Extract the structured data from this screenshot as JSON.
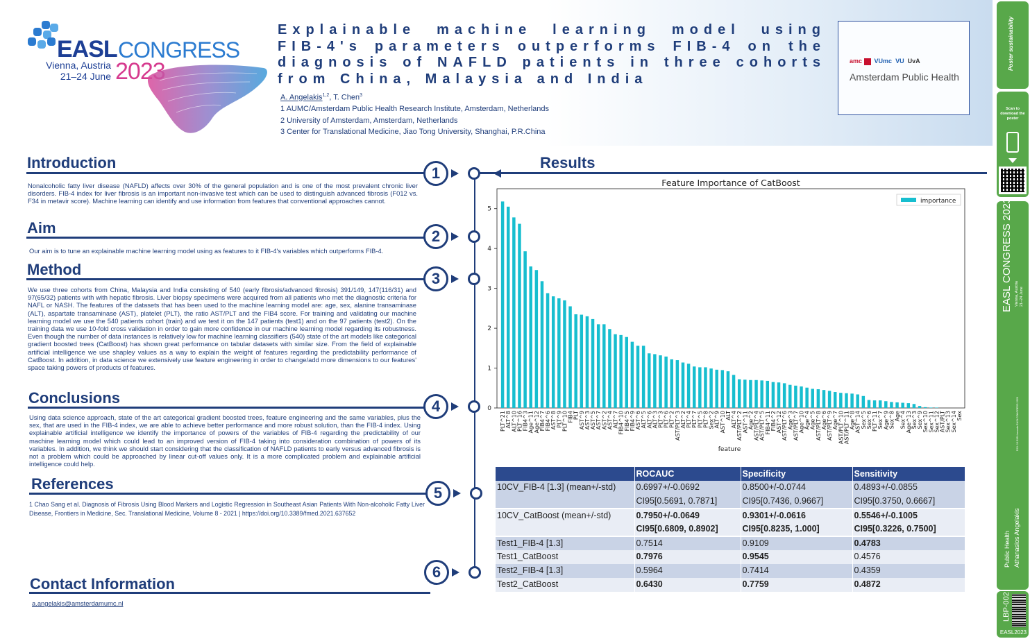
{
  "logo": {
    "easl": "EASL",
    "congress": "CONGRESS",
    "city": "Vienna, Austria",
    "dates": "21–24 June",
    "year": "2023"
  },
  "title": "Explainable machine learning model using FIB-4's parameters outperforms FIB-4 on the diagnosis of NAFLD patients in three cohorts from China, Malaysia and India",
  "authors": {
    "a1": "A. Angelakis",
    "a1_sup": "1,2",
    "a2": ", T. Chen",
    "a2_sup": "3"
  },
  "affiliations": [
    "1 AUMC/Amsterdam Public Health Research Institute, Amsterdam, Netherlands",
    "2 University of Amsterdam, Amsterdam, Netherlands",
    "3 Center for Translational Medicine, Jiao Tong University, Shanghai, P.R.China"
  ],
  "partner": {
    "logos": [
      "amc",
      "VUmc",
      "VU",
      "UvA"
    ],
    "name": "Amsterdam Public Health"
  },
  "sections": {
    "introduction": {
      "title": "Introduction",
      "num": "1",
      "text": "Nonalcoholic fatty liver disease (NAFLD) affects over 30% of the general population and is one of the most prevalent chronic liver disorders. FIB-4 index for liver fibrosis is an important non-invasive test which can be used to distinguish advanced fibrosis (F012 vs. F34 in metavir score). Machine learning can identify and use information from features that conventional approaches cannot."
    },
    "aim": {
      "title": "Aim",
      "num": "2",
      "text": "Our aim is to tune an explainable machine learning model using as features to it FIB-4's variables which outperforms FIB-4."
    },
    "method": {
      "title": "Method",
      "num": "3",
      "text": "We use three cohorts from China, Malaysia and India consisting of 540 (early fibrosis/advanced fibrosis) 391/149, 147(116/31) and 97(65/32) patients with with hepatic fibrosis. Liver biopsy specimens were acquired from all patients who met the diagnostic criteria for NAFL or NASH. The features of the datasets that has been used to the machine learning model are: age, sex, alanine transaminase (ALT), aspartate transaminase (AST), platelet (PLT), the ratio AST/PLT and the FIB4 score. For training and validating our machine learning model we use the 540 patients cohort (train) and we test it on the 147 patients (test1) and on the 97 patients (test2). On the training data we use 10-fold cross validation in order to gain more confidence in our machine learning model regarding its robustness. Even though the number of data instances is relatively low for machine learning classifiers (540) state of the art models like categorical gradient boosted trees (CatBoost) has shown great performance on tabular datasets with similar size. From the field of explainable artificial intelligence we use shapley values as a way to explain the weight of features regarding the predictability performance of CatBoost. In addition, in data science we extensively use feature engineering in order to change/add more dimensions to our features' space taking powers of products of features."
    },
    "conclusions": {
      "title": "Conclusions",
      "num": "4",
      "text": "Using data science approach, state of the art categorical gradient boosted trees, feature engineering and the same variables, plus the sex, that are used in the FIB-4 index, we are able to achieve better performance and more robust solution, than the FIB-4 index. Using explainable artificial intelligence we identify the importance of powers of the variables of FIB-4 regarding the predictability of our machine learning model which could lead to an improved version of FIB-4 taking into consideration combination of powers of its variables. In addition, we think we should start considering that the classification of NAFLD patients to early versus advanced fibrosis is not a problem which could be approached by linear cut-off values only. It is a more complicated problem and explainable artificial intelligence could help."
    },
    "references": {
      "title": "References",
      "num": "5",
      "text": "1 Chao Sang et al. Diagnosis of Fibrosis Using Blood Markers and Logistic Regression in Southeast Asian Patients With Non-alcoholic Fatty Liver Disease, Frontiers in Medicine, Sec. Translational Medicine, Volume 8 - 2021 | https://doi.org/10.3389/fmed.2021.637652"
    },
    "contact": {
      "title": "Contact Information",
      "num": "6",
      "email": "a.angelakis@amsterdamumc.nl"
    },
    "results": {
      "title": "Results"
    }
  },
  "chart_data": {
    "type": "bar",
    "title": "Feature Importance of CatBoost",
    "xlabel": "feature",
    "ylabel": "",
    "ylim": [
      0,
      5.5
    ],
    "yticks": [
      0,
      1,
      2,
      3,
      4,
      5
    ],
    "legend": "top-right",
    "color": "#17becf",
    "series": [
      {
        "name": "importance",
        "values": [
          5.18,
          5.05,
          4.78,
          4.62,
          3.93,
          3.55,
          3.46,
          3.18,
          2.88,
          2.8,
          2.75,
          2.7,
          2.55,
          2.35,
          2.34,
          2.3,
          2.23,
          2.1,
          2.1,
          1.98,
          1.85,
          1.83,
          1.78,
          1.66,
          1.56,
          1.56,
          1.37,
          1.35,
          1.32,
          1.29,
          1.22,
          1.2,
          1.14,
          1.11,
          1.04,
          1.02,
          1.02,
          0.99,
          0.96,
          0.95,
          0.92,
          0.83,
          0.72,
          0.71,
          0.7,
          0.7,
          0.69,
          0.68,
          0.65,
          0.64,
          0.62,
          0.58,
          0.56,
          0.54,
          0.51,
          0.48,
          0.47,
          0.45,
          0.43,
          0.4,
          0.38,
          0.37,
          0.36,
          0.34,
          0.3,
          0.2,
          0.19,
          0.19,
          0.17,
          0.15,
          0.14,
          0.13,
          0.12,
          0.1,
          0.05,
          0.02,
          0.01,
          0.01,
          0.0,
          0.0,
          0.0,
          0.0
        ]
      }
    ],
    "categories": [
      "PLT^21",
      "ALT^8",
      "ALT^10",
      "PLT^16",
      "FIB4^3",
      "Age^11",
      "Age^12",
      "FIB4^7",
      "FIB4^6",
      "AST^8",
      "PLT^9",
      "PLT^10",
      "FIB4",
      "PLT",
      "AST^9",
      "AST^3",
      "AST^5",
      "AST^7",
      "AST^2",
      "AST^4",
      "ALT^7",
      "FIB4^10",
      "FIB4^5",
      "FIB4^9",
      "AST^6",
      "ALT^5",
      "ALT^6",
      "ALT^3",
      "PLT^3",
      "PLT^6",
      "PLT^2",
      "AST/PLT^3",
      "ALT^2",
      "PLT^4",
      "PLT^7",
      "PLT^5",
      "PLT^8",
      "Sex^2",
      "ALT^9",
      "AST^10",
      "ALT",
      "ALT^4",
      "AST/PLT^2",
      "AST^11",
      "Age^2",
      "AST/PLT^4",
      "AST/PLT^5",
      "FIB4^11",
      "FIB4^2",
      "AST^12",
      "AST/PLT^6",
      "Age^3",
      "AST/PLT^7",
      "Age^10",
      "Age^4",
      "Age^5",
      "AST/PLT^8",
      "Age^6",
      "AST/PLT^9",
      "Age^7",
      "AST/PLT^10",
      "AST/PLT^11",
      "Age^8",
      "AST^14",
      "Sex^5",
      "Sex^6",
      "PLT^11",
      "Sex^7",
      "Age^9",
      "Sex^8",
      "Age",
      "Sex^4",
      "Age^13",
      "Sex^3",
      "Sex^9",
      "Sex^10",
      "Sex^11",
      "Sex^12",
      "AST/PLT",
      "Sex^13",
      "Sex^14",
      "Sex"
    ]
  },
  "table": {
    "headers": [
      "",
      "ROCAUC",
      "Specificity",
      "Sensitivity"
    ],
    "rows": [
      {
        "shade": true,
        "bold": [
          false,
          false,
          false
        ],
        "cells": [
          "10CV_FIB-4 [1.3] (mean+/-std)",
          "0.6997+/-0.0692",
          "0.8500+/-0.0744",
          "0.4893+/-0.0855"
        ]
      },
      {
        "shade": true,
        "bold": [
          false,
          false,
          false
        ],
        "cells": [
          "",
          "CI95[0.5691, 0.7871]",
          "CI95[0.7436, 0.9667]",
          "CI95[0.3750, 0.6667]"
        ]
      },
      {
        "shade": false,
        "bold": [
          true,
          true,
          true
        ],
        "cells": [
          "10CV_CatBoost (mean+/-std)",
          "0.7950+/-0.0649",
          "0.9301+/-0.0616",
          "0.5546+/-0.1005"
        ]
      },
      {
        "shade": false,
        "bold": [
          true,
          true,
          true
        ],
        "cells": [
          "",
          "CI95[0.6809, 0.8902]",
          "CI95[0.8235, 1.000]",
          "CI95[0.3226, 0.7500]"
        ]
      },
      {
        "shade": true,
        "bold": [
          false,
          false,
          true
        ],
        "cells": [
          "Test1_FIB-4 [1.3]",
          "0.7514",
          "0.9109",
          "0.4783"
        ]
      },
      {
        "shade": false,
        "bold": [
          true,
          true,
          false
        ],
        "cells": [
          "Test1_CatBoost",
          "0.7976",
          "0.9545",
          "0.4576"
        ]
      },
      {
        "shade": true,
        "bold": [
          false,
          false,
          false
        ],
        "cells": [
          "Test2_FIB-4 [1.3]",
          "0.5964",
          "0.7414",
          "0.4359"
        ]
      },
      {
        "shade": false,
        "bold": [
          true,
          true,
          true
        ],
        "cells": [
          "Test2_CatBoost",
          "0.6430",
          "0.7759",
          " 0.4872"
        ]
      }
    ]
  },
  "sidebar": {
    "top_label": "Poster sustainability",
    "scan_text": "Scan to download the poster",
    "congress": "EASL CONGRESS 2023",
    "city": "Vienna, Austria",
    "dates": "21–24 June",
    "doi": "DOI: 10.5281/zenodo.EASLCONGRESS 2023",
    "topic": "Public Health",
    "author": "Athanasios Angelakis",
    "code": "LBP-002",
    "footer": "EASL2023"
  }
}
